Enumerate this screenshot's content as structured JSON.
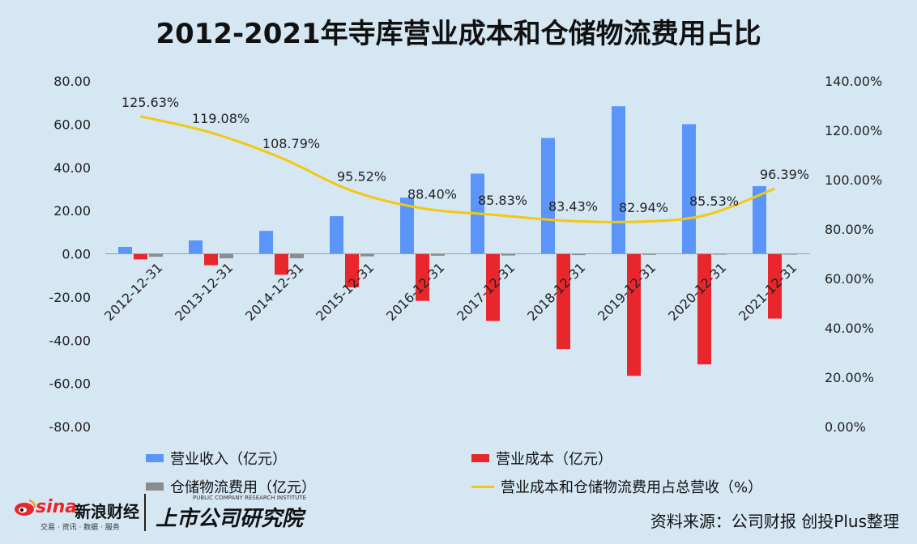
{
  "title": "2012-2021年寺库营业成本和仓储物流费用占比",
  "chart_data": {
    "type": "bar",
    "categories": [
      "2012-12-31",
      "2013-12-31",
      "2014-12-31",
      "2015-12-31",
      "2016-12-31",
      "2017-12-31",
      "2018-12-31",
      "2019-12-31",
      "2020-12-31",
      "2021-12-31"
    ],
    "series": [
      {
        "name": "营业收入（亿元）",
        "type": "bar",
        "axis": "left",
        "color": "#5b95f9",
        "values": [
          3.2,
          6.2,
          10.6,
          17.4,
          26.0,
          37.1,
          53.6,
          68.3,
          60.0,
          31.3
        ]
      },
      {
        "name": "营业成本（亿元）",
        "type": "bar",
        "axis": "left",
        "color": "#e8262b",
        "values": [
          -2.6,
          -5.3,
          -9.7,
          -15.5,
          -21.8,
          -31.1,
          -44.1,
          -56.5,
          -51.2,
          -30.0
        ]
      },
      {
        "name": "仓储物流费用（亿元）",
        "type": "bar",
        "axis": "left",
        "color": "#8c8c8c",
        "values": [
          -1.4,
          -2.1,
          -2.1,
          -1.2,
          -0.9,
          -0.8,
          -0.6,
          -0.5,
          -0.4,
          -0.3
        ]
      },
      {
        "name": "营业成本和仓储物流费用占总营收（%）",
        "type": "line",
        "axis": "right",
        "color": "#f2c811",
        "values": [
          125.63,
          119.08,
          108.79,
          95.52,
          88.4,
          85.83,
          83.43,
          82.94,
          85.53,
          96.39
        ],
        "labels": [
          "125.63%",
          "119.08%",
          "108.79%",
          "95.52%",
          "88.40%",
          "85.83%",
          "83.43%",
          "82.94%",
          "85.53%",
          "96.39%"
        ]
      }
    ],
    "ylim_left": [
      -80,
      80
    ],
    "yticks_left": [
      "80.00",
      "60.00",
      "40.00",
      "20.00",
      "0.00",
      "-20.00",
      "-40.00",
      "-60.00",
      "-80.00"
    ],
    "ylim_right": [
      0,
      140
    ],
    "yticks_right": [
      "140.00%",
      "120.00%",
      "100.00%",
      "80.00%",
      "60.00%",
      "40.00%",
      "20.00%",
      "0.00%"
    ],
    "grid": false,
    "legend_position": "bottom"
  },
  "branding": {
    "sina_logo": "sina",
    "sina_name": "新浪财经",
    "sina_tagline": "交易 · 资讯 · 数据 · 服务",
    "research_tagline": "PUBLIC COMPANY RESEARCH INSTITUTE",
    "research_name": "上市公司研究院"
  },
  "source_note": "资料来源：公司财报 创投Plus整理"
}
